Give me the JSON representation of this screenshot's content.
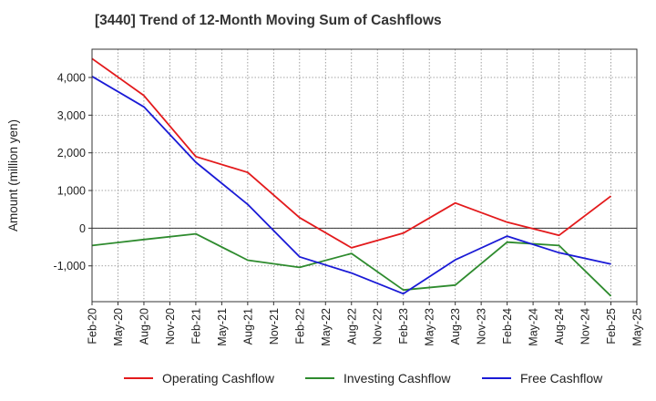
{
  "chart_data": {
    "type": "line",
    "title": "[3440]  Trend of 12-Month Moving Sum of Cashflows",
    "xlabel": "",
    "ylabel": "Amount (million yen)",
    "x_ticks": [
      "Feb-20",
      "May-20",
      "Aug-20",
      "Nov-20",
      "Feb-21",
      "May-21",
      "Aug-21",
      "Nov-21",
      "Feb-22",
      "May-22",
      "Aug-22",
      "Nov-22",
      "Feb-23",
      "May-23",
      "Aug-23",
      "Nov-23",
      "Feb-24",
      "May-24",
      "Aug-24",
      "Nov-24",
      "Feb-25",
      "May-25"
    ],
    "y_ticks": [
      4000,
      3000,
      2000,
      1000,
      0,
      -1000
    ],
    "y_tick_labels": [
      "4,000",
      "3,000",
      "2,000",
      "1,000",
      "0",
      "-1,000"
    ],
    "ylim": [
      -1950,
      4750
    ],
    "grid": true,
    "legend_position": "bottom",
    "series": [
      {
        "name": "Operating Cashflow",
        "color": "#e31a1c",
        "x": [
          "Feb-20",
          "Aug-20",
          "Feb-21",
          "Aug-21",
          "Feb-22",
          "Aug-22",
          "Feb-23",
          "Aug-23",
          "Feb-24",
          "Aug-24",
          "Feb-25"
        ],
        "values": [
          4500,
          3520,
          1900,
          1480,
          280,
          -520,
          -130,
          670,
          160,
          -190,
          850
        ]
      },
      {
        "name": "Investing Cashflow",
        "color": "#2e8b2e",
        "x": [
          "Feb-20",
          "Aug-20",
          "Feb-21",
          "Aug-21",
          "Feb-22",
          "Aug-22",
          "Feb-23",
          "Aug-23",
          "Feb-24",
          "Aug-24",
          "Feb-25"
        ],
        "values": [
          -460,
          -300,
          -150,
          -850,
          -1040,
          -670,
          -1640,
          -1510,
          -370,
          -460,
          -1800
        ]
      },
      {
        "name": "Free Cashflow",
        "color": "#1a1ad6",
        "x": [
          "Feb-20",
          "Aug-20",
          "Feb-21",
          "Aug-21",
          "Feb-22",
          "Aug-22",
          "Feb-23",
          "Aug-23",
          "Feb-24",
          "Aug-24",
          "Feb-25"
        ],
        "values": [
          4030,
          3220,
          1750,
          630,
          -760,
          -1190,
          -1740,
          -840,
          -210,
          -650,
          -950
        ]
      }
    ]
  }
}
